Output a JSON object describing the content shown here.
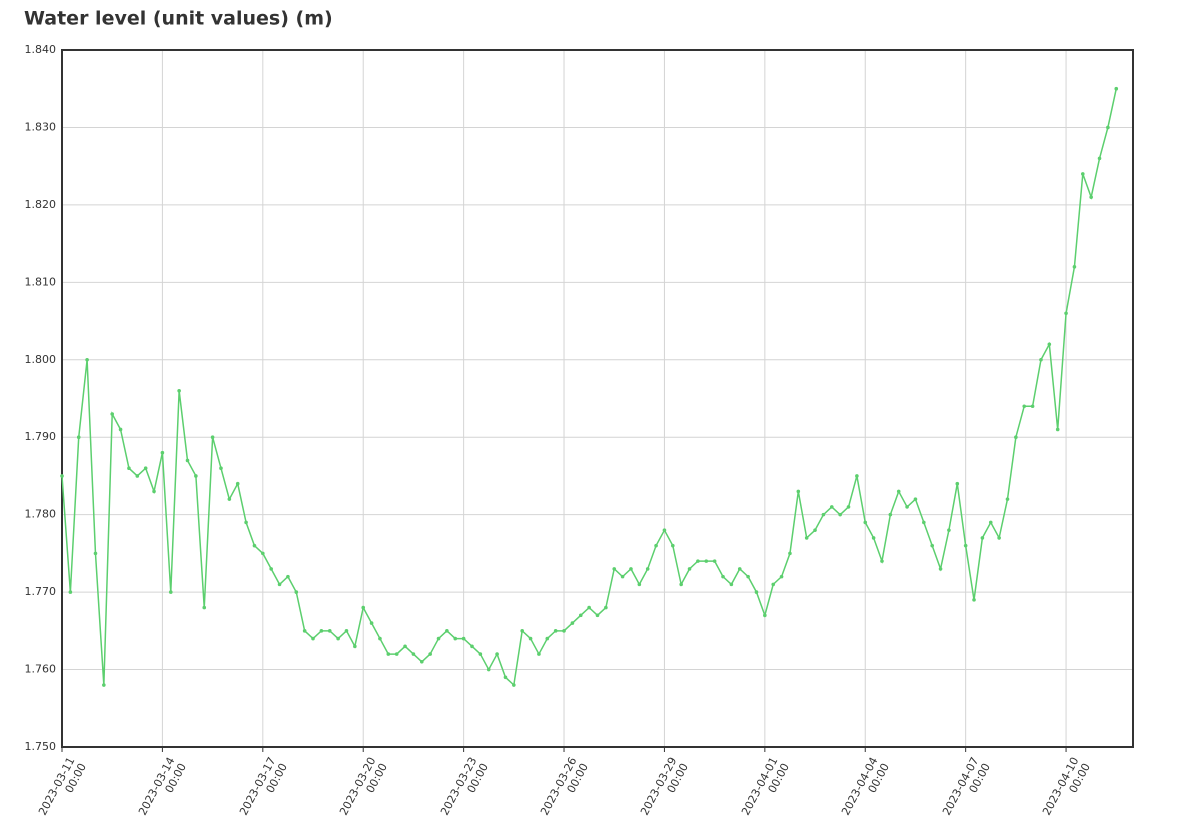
{
  "chart_data": {
    "type": "line",
    "title": "Water level (unit values) (m)",
    "x": [
      "2023-03-11 00:00",
      "2023-03-11 06:00",
      "2023-03-11 12:00",
      "2023-03-11 18:00",
      "2023-03-12 00:00",
      "2023-03-12 06:00",
      "2023-03-12 12:00",
      "2023-03-12 18:00",
      "2023-03-13 00:00",
      "2023-03-13 06:00",
      "2023-03-13 12:00",
      "2023-03-13 18:00",
      "2023-03-14 00:00",
      "2023-03-14 06:00",
      "2023-03-14 12:00",
      "2023-03-14 18:00",
      "2023-03-15 00:00",
      "2023-03-15 06:00",
      "2023-03-15 12:00",
      "2023-03-15 18:00",
      "2023-03-16 00:00",
      "2023-03-16 06:00",
      "2023-03-16 12:00",
      "2023-03-16 18:00",
      "2023-03-17 00:00",
      "2023-03-17 06:00",
      "2023-03-17 12:00",
      "2023-03-17 18:00",
      "2023-03-18 00:00",
      "2023-03-18 06:00",
      "2023-03-18 12:00",
      "2023-03-18 18:00",
      "2023-03-19 00:00",
      "2023-03-19 06:00",
      "2023-03-19 12:00",
      "2023-03-19 18:00",
      "2023-03-20 00:00",
      "2023-03-20 06:00",
      "2023-03-20 12:00",
      "2023-03-20 18:00",
      "2023-03-21 00:00",
      "2023-03-21 06:00",
      "2023-03-21 12:00",
      "2023-03-21 18:00",
      "2023-03-22 00:00",
      "2023-03-22 06:00",
      "2023-03-22 12:00",
      "2023-03-22 18:00",
      "2023-03-23 00:00",
      "2023-03-23 06:00",
      "2023-03-23 12:00",
      "2023-03-23 18:00",
      "2023-03-24 00:00",
      "2023-03-24 06:00",
      "2023-03-24 12:00",
      "2023-03-24 18:00",
      "2023-03-25 00:00",
      "2023-03-25 06:00",
      "2023-03-25 12:00",
      "2023-03-25 18:00",
      "2023-03-26 00:00",
      "2023-03-26 06:00",
      "2023-03-26 12:00",
      "2023-03-26 18:00",
      "2023-03-27 00:00",
      "2023-03-27 06:00",
      "2023-03-27 12:00",
      "2023-03-27 18:00",
      "2023-03-28 00:00",
      "2023-03-28 06:00",
      "2023-03-28 12:00",
      "2023-03-28 18:00",
      "2023-03-29 00:00",
      "2023-03-29 06:00",
      "2023-03-29 12:00",
      "2023-03-29 18:00",
      "2023-03-30 00:00",
      "2023-03-30 06:00",
      "2023-03-30 12:00",
      "2023-03-30 18:00",
      "2023-03-31 00:00",
      "2023-03-31 06:00",
      "2023-03-31 12:00",
      "2023-03-31 18:00",
      "2023-04-01 00:00",
      "2023-04-01 06:00",
      "2023-04-01 12:00",
      "2023-04-01 18:00",
      "2023-04-02 00:00",
      "2023-04-02 06:00",
      "2023-04-02 12:00",
      "2023-04-02 18:00",
      "2023-04-03 00:00",
      "2023-04-03 06:00",
      "2023-04-03 12:00",
      "2023-04-03 18:00",
      "2023-04-04 00:00",
      "2023-04-04 06:00",
      "2023-04-04 12:00",
      "2023-04-04 18:00",
      "2023-04-05 00:00",
      "2023-04-05 06:00",
      "2023-04-05 12:00",
      "2023-04-05 18:00",
      "2023-04-06 00:00",
      "2023-04-06 06:00",
      "2023-04-06 12:00",
      "2023-04-06 18:00",
      "2023-04-07 00:00",
      "2023-04-07 06:00",
      "2023-04-07 12:00",
      "2023-04-07 18:00",
      "2023-04-08 00:00",
      "2023-04-08 06:00",
      "2023-04-08 12:00",
      "2023-04-08 18:00",
      "2023-04-09 00:00",
      "2023-04-09 06:00",
      "2023-04-09 12:00",
      "2023-04-09 18:00",
      "2023-04-10 00:00",
      "2023-04-10 06:00",
      "2023-04-10 12:00",
      "2023-04-10 18:00",
      "2023-04-11 00:00",
      "2023-04-11 06:00",
      "2023-04-11 12:00"
    ],
    "series": [
      {
        "color": "#5ccf6e",
        "values": [
          1.785,
          1.77,
          1.79,
          1.8,
          1.775,
          1.758,
          1.793,
          1.791,
          1.786,
          1.785,
          1.786,
          1.783,
          1.788,
          1.77,
          1.796,
          1.787,
          1.785,
          1.768,
          1.79,
          1.786,
          1.782,
          1.784,
          1.779,
          1.776,
          1.775,
          1.773,
          1.771,
          1.772,
          1.77,
          1.765,
          1.764,
          1.765,
          1.765,
          1.764,
          1.765,
          1.763,
          1.768,
          1.766,
          1.764,
          1.762,
          1.762,
          1.763,
          1.762,
          1.761,
          1.762,
          1.764,
          1.765,
          1.764,
          1.764,
          1.763,
          1.762,
          1.76,
          1.762,
          1.759,
          1.758,
          1.765,
          1.764,
          1.762,
          1.764,
          1.765,
          1.765,
          1.766,
          1.767,
          1.768,
          1.767,
          1.768,
          1.773,
          1.772,
          1.773,
          1.771,
          1.773,
          1.776,
          1.778,
          1.776,
          1.771,
          1.773,
          1.774,
          1.774,
          1.774,
          1.772,
          1.771,
          1.773,
          1.772,
          1.77,
          1.767,
          1.771,
          1.772,
          1.775,
          1.783,
          1.777,
          1.778,
          1.78,
          1.781,
          1.78,
          1.781,
          1.785,
          1.779,
          1.777,
          1.774,
          1.78,
          1.783,
          1.781,
          1.782,
          1.779,
          1.776,
          1.773,
          1.778,
          1.784,
          1.776,
          1.769,
          1.777,
          1.779,
          1.777,
          1.782,
          1.79,
          1.794,
          1.794,
          1.8,
          1.802,
          1.791,
          1.806,
          1.812,
          1.824,
          1.821,
          1.826,
          1.83,
          1.835
        ]
      }
    ],
    "xlim": [
      "2023-03-11 00:00",
      "2023-04-12 00:00"
    ],
    "xticks": [
      "2023-03-11 00:00",
      "2023-03-14 00:00",
      "2023-03-17 00:00",
      "2023-03-20 00:00",
      "2023-03-23 00:00",
      "2023-03-26 00:00",
      "2023-03-29 00:00",
      "2023-04-01 00:00",
      "2023-04-04 00:00",
      "2023-04-07 00:00",
      "2023-04-10 00:00"
    ],
    "ylim": [
      1.75,
      1.84
    ],
    "yticks": [
      {
        "value": 1.75,
        "label": "1.750"
      },
      {
        "value": 1.76,
        "label": "1.760"
      },
      {
        "value": 1.77,
        "label": "1.770"
      },
      {
        "value": 1.78,
        "label": "1.780"
      },
      {
        "value": 1.79,
        "label": "1.790"
      },
      {
        "value": 1.8,
        "label": "1.800"
      },
      {
        "value": 1.81,
        "label": "1.810"
      },
      {
        "value": 1.82,
        "label": "1.820"
      },
      {
        "value": 1.83,
        "label": "1.830"
      },
      {
        "value": 1.84,
        "label": "1.840"
      }
    ],
    "grid": true
  }
}
